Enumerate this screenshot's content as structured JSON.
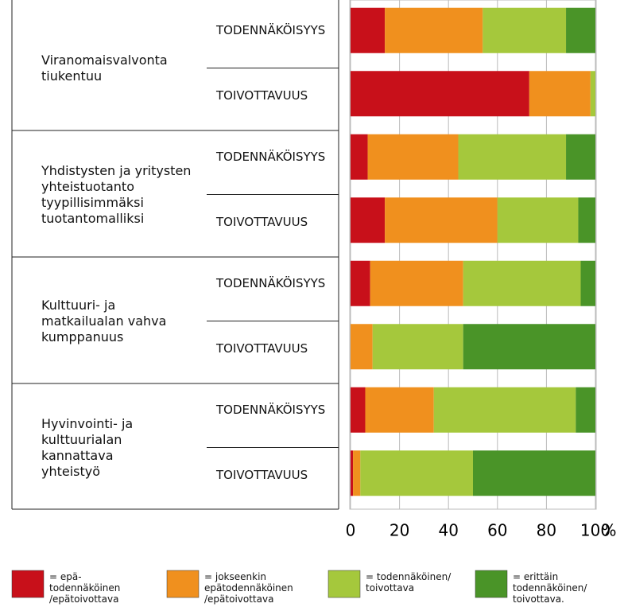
{
  "chart_data": {
    "type": "stacked_barh",
    "groups": [
      "Viranomaisvalvonta\ntiukentuu",
      "Yhdistysten ja yritysten\nyhteistuotanto\ntyypillisimmäksi\ntuotantomalliksi",
      "Kulttuuri- ja\nmatkailualan vahva\nkumppanuus",
      "Hyvinvointi- ja\nkulttuurialan\nkannattava\nyhteistyö"
    ],
    "categories": [
      "TODENNÄKÖISYYS",
      "TOIVOTTAVUUS",
      "TODENNÄKÖISYYS",
      "TOIVOTTAVUUS",
      "TODENNÄKÖISYYS",
      "TOIVOTTAVUUS",
      "TODENNÄKÖISYYS",
      "TOIVOTTAVUUS"
    ],
    "series": [
      {
        "name": "= epä-\ntodennäköinen\n/epätoivottava",
        "color": "#c8101a",
        "values": [
          14,
          73,
          7,
          14,
          8,
          0,
          6,
          1
        ]
      },
      {
        "name": "= jokseenkin\nepätodennäköinen\n/epätoivottava",
        "color": "#f0901e",
        "values": [
          40,
          25,
          37,
          46,
          38,
          9,
          28,
          3
        ]
      },
      {
        "name": "= todennäköinen/\ntoivottava",
        "color": "#a5c83c",
        "values": [
          34,
          2,
          44,
          33,
          48,
          37,
          58,
          46
        ]
      },
      {
        "name": "=   erittäin\ntodennäköinen/\ntoivottava.",
        "color": "#4a9428",
        "values": [
          12,
          0,
          12,
          7,
          6,
          54,
          8,
          50
        ]
      }
    ],
    "xlim": [
      0,
      100
    ],
    "xticks": [
      0,
      20,
      40,
      60,
      80,
      100
    ],
    "x_label": "%",
    "grid": true
  }
}
